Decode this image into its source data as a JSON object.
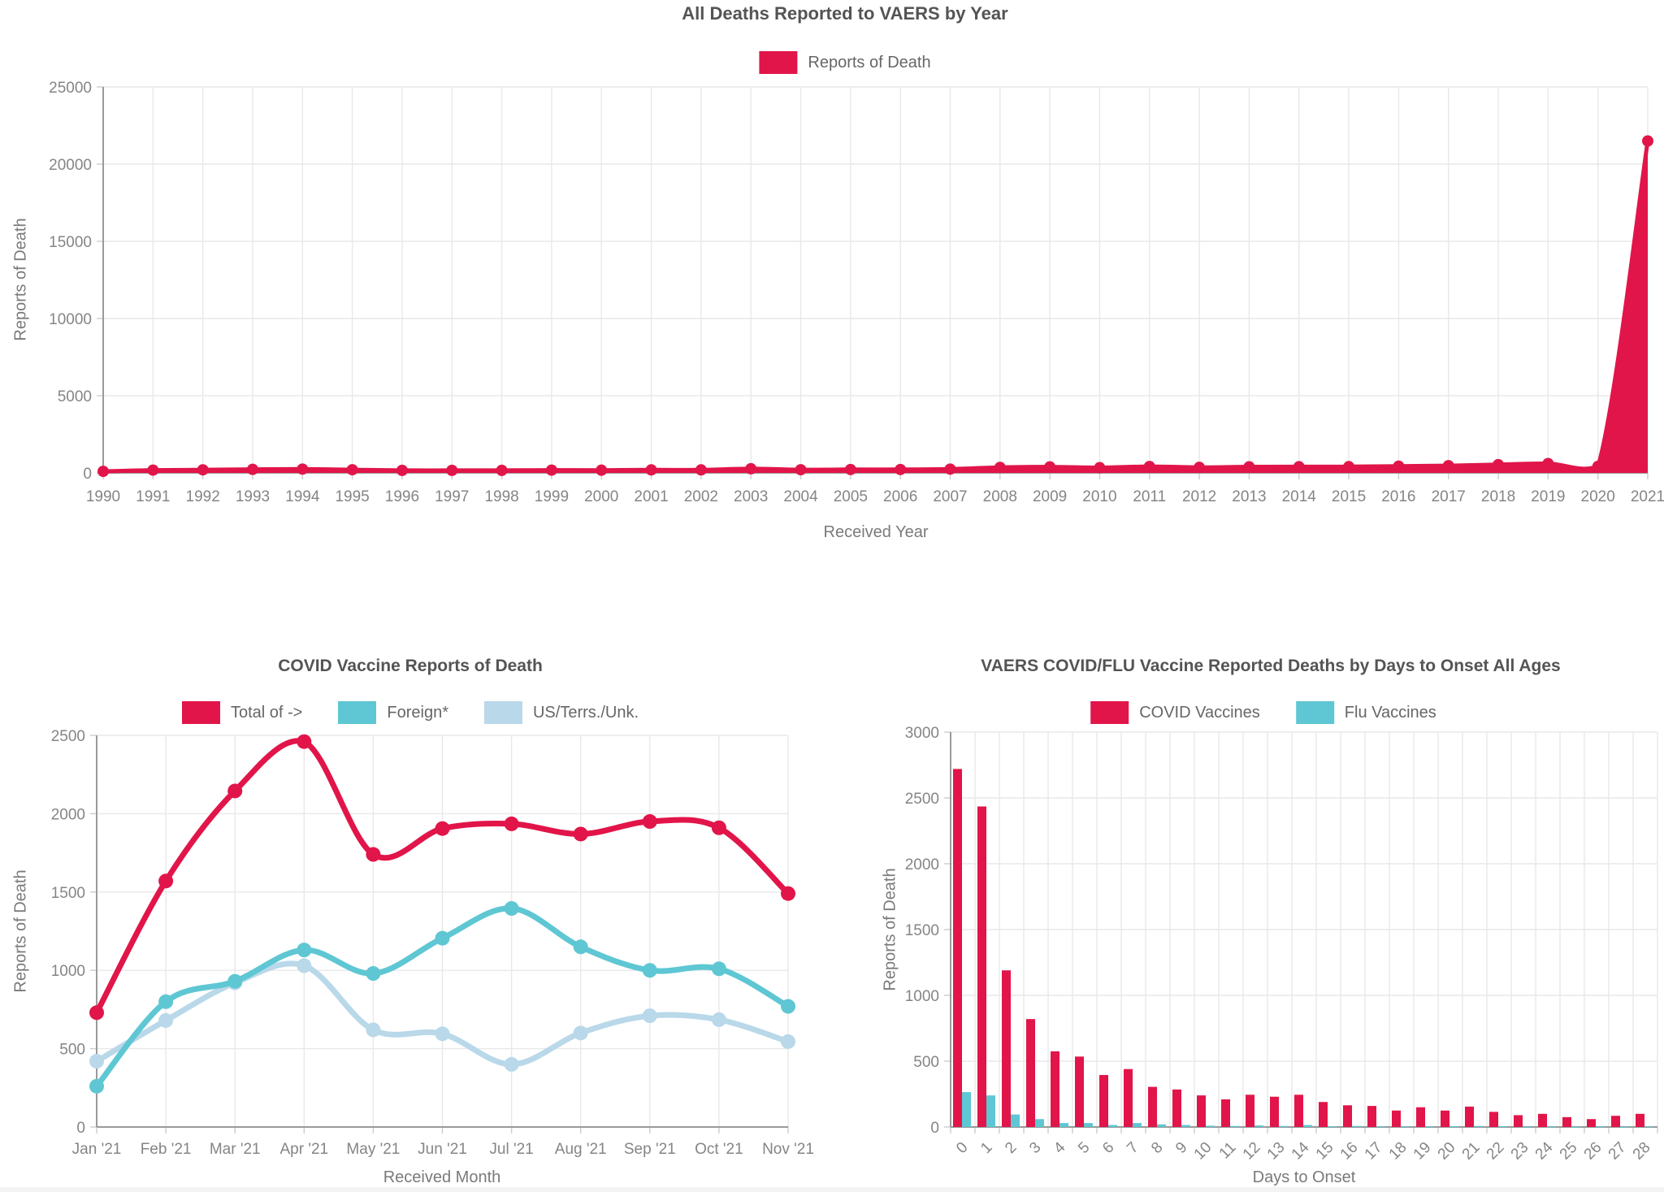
{
  "page": {
    "background": "#ffffff"
  },
  "colors": {
    "red": "#E11549",
    "teal": "#5EC7D3",
    "light_blue": "#B9D8E9",
    "grid": "#e8e8e8",
    "axis_line": "#9a9a9a",
    "tick": "#cccccc",
    "tick_label": "#858585"
  },
  "chart_data": [
    {
      "id": "deaths_by_year",
      "type": "area",
      "title": "All Deaths Reported to VAERS by Year",
      "x_title": "Received Year",
      "y_title": "Reports of Death",
      "legend": [
        {
          "label": "Reports of Death",
          "color": "#E11549"
        }
      ],
      "categories": [
        "1990",
        "1991",
        "1992",
        "1993",
        "1994",
        "1995",
        "1996",
        "1997",
        "1998",
        "1999",
        "2000",
        "2001",
        "2002",
        "2003",
        "2004",
        "2005",
        "2006",
        "2007",
        "2008",
        "2009",
        "2010",
        "2011",
        "2012",
        "2013",
        "2014",
        "2015",
        "2016",
        "2017",
        "2018",
        "2019",
        "2020",
        "2021"
      ],
      "series": [
        {
          "name": "Reports of Death",
          "color": "#E11549",
          "fill": true,
          "values": [
            100,
            180,
            200,
            230,
            245,
            205,
            165,
            165,
            165,
            180,
            175,
            195,
            195,
            270,
            205,
            220,
            220,
            245,
            355,
            390,
            340,
            415,
            360,
            395,
            400,
            405,
            435,
            470,
            535,
            605,
            420,
            21500
          ]
        }
      ],
      "y_ticks": [
        0,
        5000,
        10000,
        15000,
        20000,
        25000
      ],
      "ylim": [
        0,
        25000
      ],
      "grid": true,
      "legend_position": "top"
    },
    {
      "id": "covid_monthly",
      "type": "line",
      "title": "COVID Vaccine Reports of Death",
      "x_title": "Received Month",
      "y_title": "Reports of Death",
      "legend": [
        {
          "label": "Total of ->",
          "color": "#E11549"
        },
        {
          "label": "Foreign*",
          "color": "#5EC7D3"
        },
        {
          "label": "US/Terrs./Unk.",
          "color": "#B9D8E9"
        }
      ],
      "categories": [
        "Jan '21",
        "Feb '21",
        "Mar '21",
        "Apr '21",
        "May '21",
        "Jun '21",
        "Jul '21",
        "Aug '21",
        "Sep '21",
        "Oct '21",
        "Nov '21"
      ],
      "series": [
        {
          "name": "Total of ->",
          "color": "#E11549",
          "fill": false,
          "values": [
            730,
            1570,
            2145,
            2460,
            1740,
            1905,
            1935,
            1870,
            1950,
            1910,
            1490
          ]
        },
        {
          "name": "Foreign*",
          "color": "#5EC7D3",
          "fill": false,
          "values": [
            260,
            800,
            930,
            1130,
            980,
            1205,
            1395,
            1150,
            1000,
            1010,
            770
          ]
        },
        {
          "name": "US/Terrs./Unk.",
          "color": "#B9D8E9",
          "fill": false,
          "values": [
            420,
            680,
            920,
            1030,
            620,
            595,
            400,
            600,
            710,
            685,
            545
          ]
        }
      ],
      "y_ticks": [
        0,
        500,
        1000,
        1500,
        2000,
        2500
      ],
      "ylim": [
        0,
        2500
      ],
      "grid": true,
      "legend_position": "top"
    },
    {
      "id": "days_to_onset",
      "type": "bar",
      "title": "VAERS COVID/FLU Vaccine Reported Deaths by Days to Onset All Ages",
      "x_title": "Days to Onset",
      "y_title": "Reports of Death",
      "legend": [
        {
          "label": "COVID Vaccines",
          "color": "#E11549"
        },
        {
          "label": "Flu Vaccines",
          "color": "#5EC7D3"
        }
      ],
      "categories": [
        "0",
        "1",
        "2",
        "3",
        "4",
        "5",
        "6",
        "7",
        "8",
        "9",
        "10",
        "11",
        "12",
        "13",
        "14",
        "15",
        "16",
        "17",
        "18",
        "19",
        "20",
        "21",
        "22",
        "23",
        "24",
        "25",
        "26",
        "27",
        "28"
      ],
      "series": [
        {
          "name": "COVID Vaccines",
          "color": "#E11549",
          "values": [
            2720,
            2435,
            1190,
            820,
            575,
            535,
            395,
            440,
            305,
            285,
            240,
            210,
            245,
            230,
            245,
            190,
            165,
            160,
            125,
            150,
            125,
            155,
            115,
            90,
            100,
            75,
            60,
            85,
            100
          ]
        },
        {
          "name": "Flu Vaccines",
          "color": "#5EC7D3",
          "values": [
            265,
            240,
            95,
            60,
            30,
            30,
            15,
            30,
            20,
            15,
            10,
            8,
            12,
            8,
            15,
            5,
            8,
            5,
            5,
            5,
            5,
            8,
            5,
            3,
            3,
            3,
            3,
            3,
            5
          ]
        }
      ],
      "y_ticks": [
        0,
        500,
        1000,
        1500,
        2000,
        2500,
        3000
      ],
      "ylim": [
        0,
        3000
      ],
      "grid": true,
      "legend_position": "top",
      "x_tick_rotation": -45
    }
  ]
}
